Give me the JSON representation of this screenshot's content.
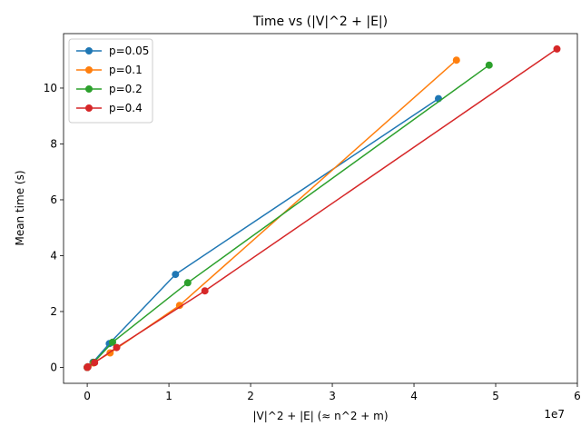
{
  "chart_data": {
    "type": "line",
    "title": "Time vs (|V|^2 + |E|)",
    "xlabel": "|V|^2 + |E| (≈ n^2 + m)",
    "ylabel": "Mean time (s)",
    "x_offset_label": "1e7",
    "xlim": [
      -2900000,
      60000000
    ],
    "ylim": [
      -0.57,
      11.95
    ],
    "x_ticks": [
      0,
      10000000,
      20000000,
      30000000,
      40000000,
      50000000,
      60000000
    ],
    "x_tick_labels": [
      "0",
      "1",
      "2",
      "3",
      "4",
      "5",
      "6"
    ],
    "y_ticks": [
      0,
      2,
      4,
      6,
      8,
      10
    ],
    "y_tick_labels": [
      "0",
      "2",
      "4",
      "6",
      "8",
      "10"
    ],
    "grid": false,
    "legend_position": "top-left",
    "series": [
      {
        "name": "p=0.05",
        "color": "#1f77b4",
        "x": [
          0,
          50000,
          700000,
          2700000,
          10800000,
          43000000
        ],
        "y": [
          0,
          0.02,
          0.18,
          0.85,
          3.33,
          9.62
        ]
      },
      {
        "name": "p=0.1",
        "color": "#ff7f0e",
        "x": [
          0,
          70000,
          750000,
          2800000,
          11300000,
          45200000
        ],
        "y": [
          0,
          0.02,
          0.16,
          0.52,
          2.22,
          11.0
        ]
      },
      {
        "name": "p=0.2",
        "color": "#2ca02c",
        "x": [
          0,
          70000,
          800000,
          3100000,
          12300000,
          49200000
        ],
        "y": [
          0,
          0.02,
          0.18,
          0.9,
          3.03,
          10.82
        ]
      },
      {
        "name": "p=0.4",
        "color": "#d62728",
        "x": [
          0,
          80000,
          900000,
          3600000,
          14400000,
          57500000
        ],
        "y": [
          0,
          0.02,
          0.17,
          0.71,
          2.74,
          11.4
        ]
      }
    ]
  }
}
